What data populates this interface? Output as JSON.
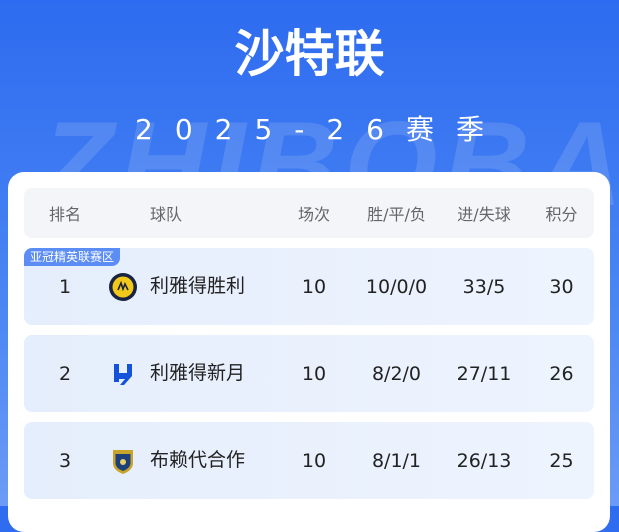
{
  "watermark": "ZHIBOBA",
  "header": {
    "title": "沙特联",
    "season": "2025-26赛季"
  },
  "table": {
    "columns": [
      "排名",
      "球队",
      "场次",
      "胜/平/负",
      "进/失球",
      "积分"
    ],
    "zone_badge": "亚冠精英联赛区",
    "rows": [
      {
        "rank": "1",
        "team": "利雅得胜利",
        "logo": "al-nassr-logo",
        "played": "10",
        "wdl": "10/0/0",
        "goals": "33/5",
        "points": "30"
      },
      {
        "rank": "2",
        "team": "利雅得新月",
        "logo": "al-hilal-logo",
        "played": "10",
        "wdl": "8/2/0",
        "goals": "27/11",
        "points": "26"
      },
      {
        "rank": "3",
        "team": "布赖代合作",
        "logo": "al-taawoun-logo",
        "played": "10",
        "wdl": "8/1/1",
        "goals": "26/13",
        "points": "25"
      }
    ]
  }
}
